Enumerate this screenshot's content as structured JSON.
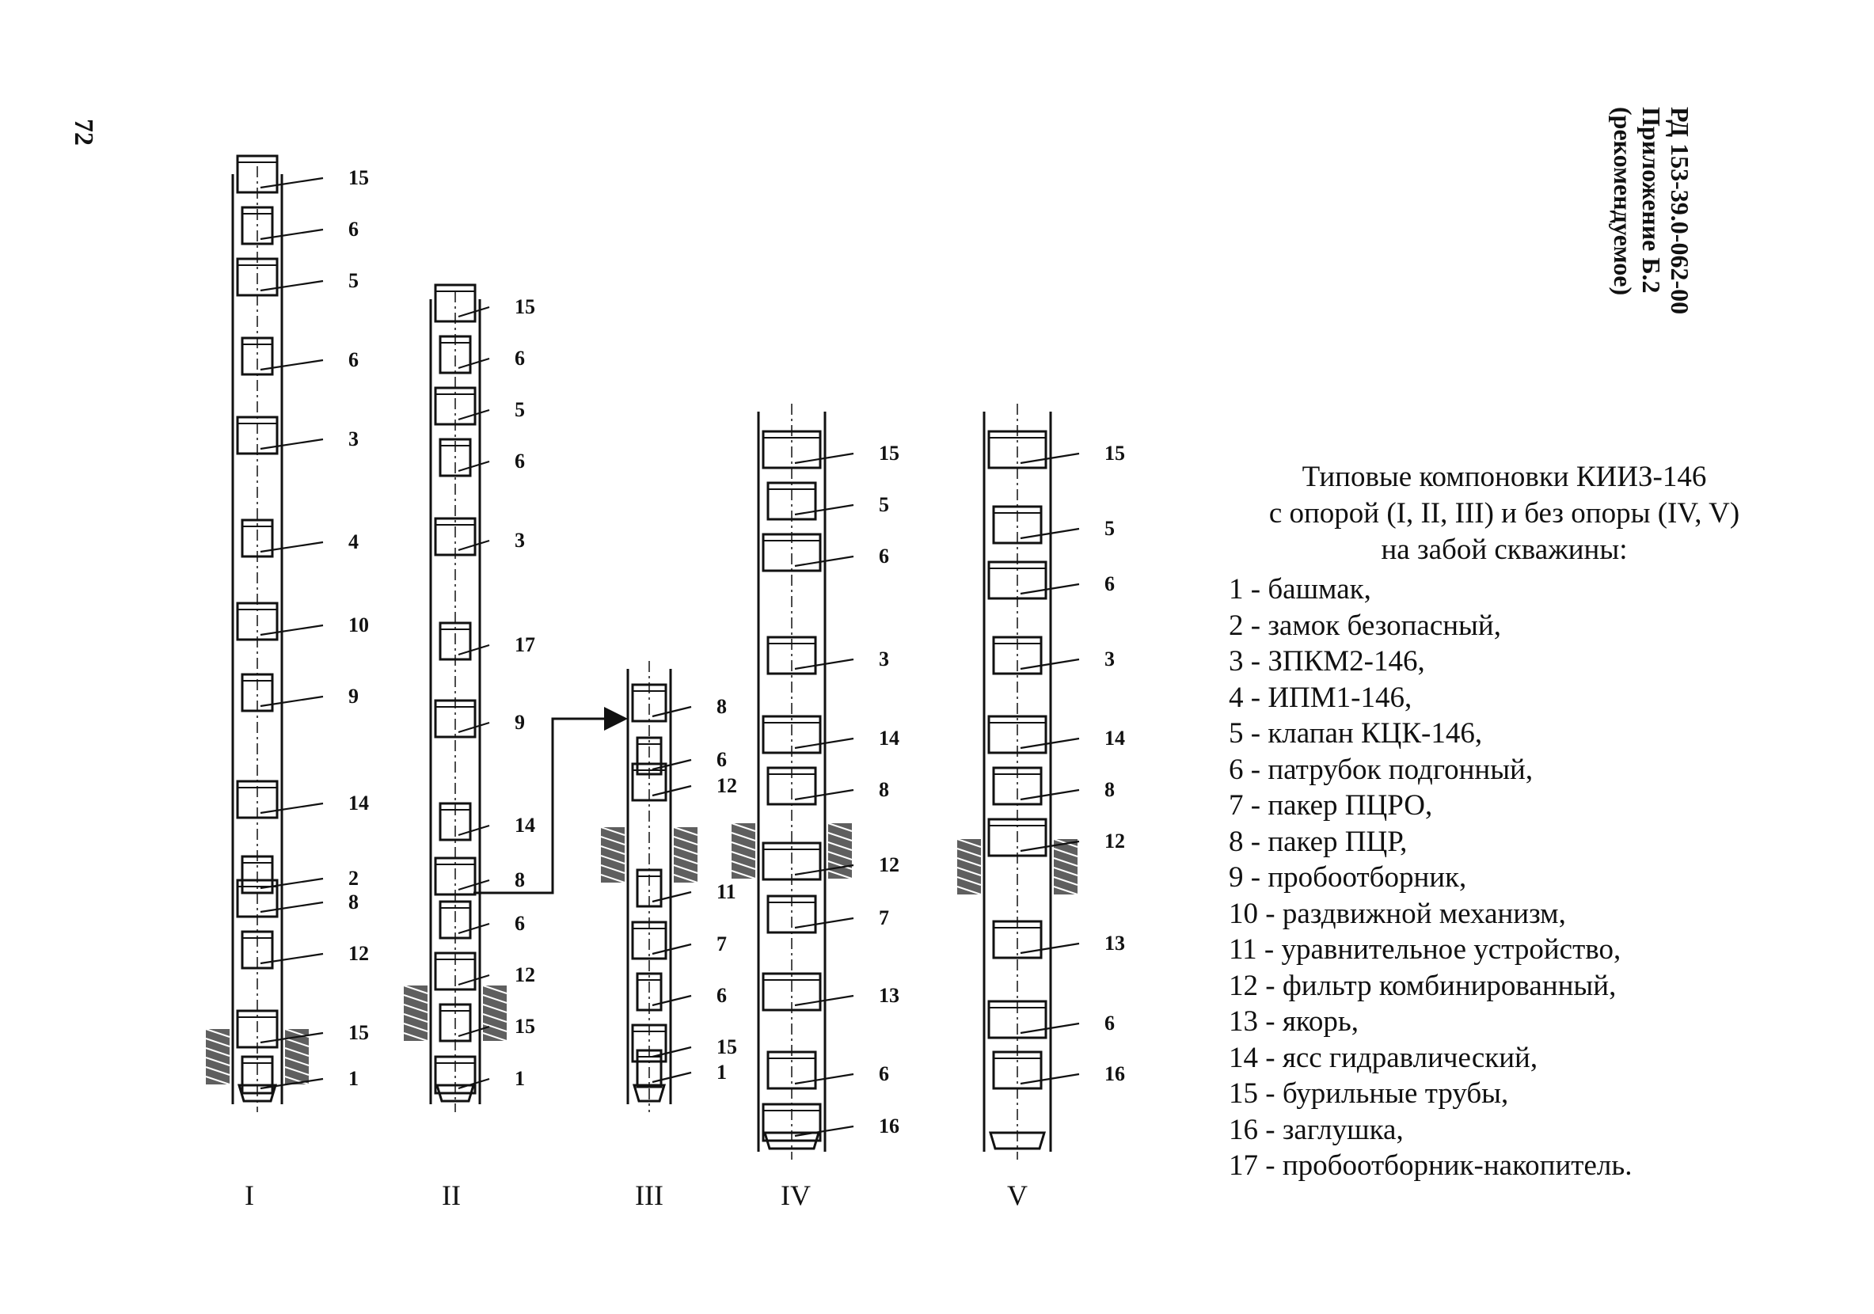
{
  "page_number": "72",
  "header": {
    "doc_code": "РД 153-39.0-062-00",
    "appendix": "Приложение Б.2",
    "note": "(рекомендуемое)"
  },
  "legend": {
    "title_lines": [
      "Типовые компоновки КИИЗ-146",
      "с опорой (I, II, III) и без опоры (IV, V)",
      "на забой скважины:"
    ],
    "items": [
      "1 - башмак,",
      "2 - замок безопасный,",
      "3 - ЗПКМ2-146,",
      "4 - ИПМ1-146,",
      "5 - клапан КЦК-146,",
      "6 - патрубок подгонный,",
      "7 - пакер ПЦРО,",
      "8 - пакер ПЦР,",
      "9 - пробоотборник,",
      "10 - раздвижной механизм,",
      "11 - уравнительное устройство,",
      "12 - фильтр комбинированный,",
      "13 - якорь,",
      "14 - ясс гидравлический,",
      "15 - бурильные трубы,",
      "16 - заглушка,",
      "17 - пробоотборник-накопитель."
    ]
  },
  "assemblies": [
    {
      "label": "I",
      "callouts": [
        "15",
        "6",
        "5",
        "6",
        "3",
        "4",
        "10",
        "9",
        "14",
        "2",
        "8",
        "12",
        "15",
        "1"
      ]
    },
    {
      "label": "II",
      "callouts": [
        "15",
        "6",
        "5",
        "6",
        "3",
        "17",
        "9",
        "14",
        "8",
        "6",
        "12",
        "15",
        "1"
      ]
    },
    {
      "label": "III",
      "callouts": [
        "8",
        "6",
        "12",
        "11",
        "7",
        "6",
        "15",
        "1"
      ]
    },
    {
      "label": "IV",
      "callouts": [
        "15",
        "5",
        "6",
        "3",
        "14",
        "8",
        "12",
        "7",
        "13",
        "6",
        "16"
      ]
    },
    {
      "label": "V",
      "callouts": [
        "15",
        "5",
        "6",
        "3",
        "14",
        "8",
        "12",
        "13",
        "6",
        "16"
      ]
    }
  ]
}
